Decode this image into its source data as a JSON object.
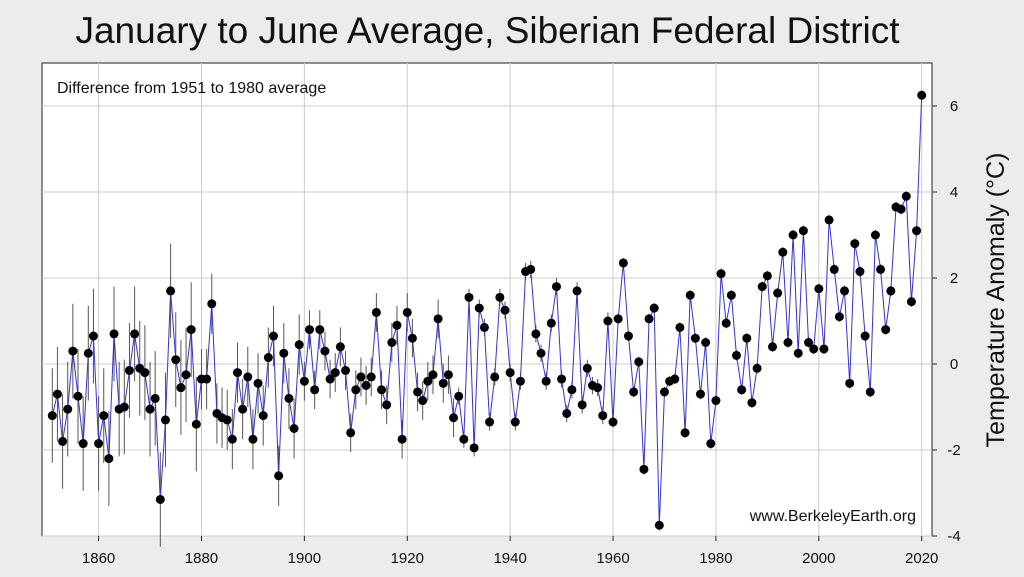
{
  "title": "January to June Average, Siberian Federal District",
  "subtitle": "Difference from 1951 to 1980 average",
  "watermark": "www.BerkeleyEarth.org",
  "colors": {
    "line": "#3333cc",
    "point": "#000000",
    "errorbar": "#555555",
    "grid": "#cccccc",
    "plot_bg": "#ffffff",
    "page_bg": "#ececec"
  },
  "chart_data": {
    "type": "line",
    "title": "January to June Average, Siberian Federal District",
    "subtitle": "Difference from 1951 to 1980 average",
    "xlabel": "",
    "ylabel": "Temperature Anomaly (°C)",
    "xlim": [
      1849,
      2022
    ],
    "ylim": [
      -4,
      7
    ],
    "xticks": [
      1860,
      1880,
      1900,
      1920,
      1940,
      1960,
      1980,
      2000,
      2020
    ],
    "yticks": [
      -4,
      -2,
      0,
      2,
      4,
      6
    ],
    "grid": true,
    "legend": "none",
    "markers": "filled circles with vertical uncertainty bars",
    "series": [
      {
        "x": [
          1851,
          1852,
          1853,
          1854,
          1855,
          1856,
          1857,
          1858,
          1859,
          1860,
          1861,
          1862,
          1863,
          1864,
          1865,
          1866,
          1867,
          1868,
          1869,
          1870,
          1871,
          1872,
          1873,
          1874,
          1875,
          1876,
          1877,
          1878,
          1879,
          1880,
          1881,
          1882,
          1883,
          1884,
          1885,
          1886,
          1887,
          1888,
          1889,
          1890,
          1891,
          1892,
          1893,
          1894,
          1895,
          1896,
          1897,
          1898,
          1899,
          1900,
          1901,
          1902,
          1903,
          1904,
          1905,
          1906,
          1907,
          1908,
          1909,
          1910,
          1911,
          1912,
          1913,
          1914,
          1915,
          1916,
          1917,
          1918,
          1919,
          1920,
          1921,
          1922,
          1923,
          1924,
          1925,
          1926,
          1927,
          1928,
          1929,
          1930,
          1931,
          1932,
          1933,
          1934,
          1935,
          1936,
          1937,
          1938,
          1939,
          1940,
          1941,
          1942,
          1943,
          1944,
          1945,
          1946,
          1947,
          1948,
          1949,
          1950,
          1951,
          1952,
          1953,
          1954,
          1955,
          1956,
          1957,
          1958,
          1959,
          1960,
          1961,
          1962,
          1963,
          1964,
          1965,
          1966,
          1967,
          1968,
          1969,
          1970,
          1971,
          1972,
          1973,
          1974,
          1975,
          1976,
          1977,
          1978,
          1979,
          1980,
          1981,
          1982,
          1983,
          1984,
          1985,
          1986,
          1987,
          1988,
          1989,
          1990,
          1991,
          1992,
          1993,
          1994,
          1995,
          1996,
          1997,
          1998,
          1999,
          2000,
          2001,
          2002,
          2003,
          2004,
          2005,
          2006,
          2007,
          2008,
          2009,
          2010,
          2011,
          2012,
          2013,
          2014,
          2015,
          2016,
          2017,
          2018,
          2019,
          2020
        ],
        "y": [
          -1.2,
          -0.7,
          -1.8,
          -1.05,
          0.3,
          -0.75,
          -1.85,
          0.25,
          0.65,
          -1.85,
          -1.2,
          -2.2,
          0.7,
          -1.05,
          -1.0,
          -0.15,
          0.7,
          -0.1,
          -0.2,
          -1.05,
          -0.8,
          -3.15,
          -1.3,
          1.7,
          0.1,
          -0.55,
          -0.25,
          0.8,
          -1.4,
          -0.35,
          -0.35,
          1.4,
          -1.15,
          -1.25,
          -1.3,
          -1.75,
          -0.2,
          -1.05,
          -0.3,
          -1.75,
          -0.45,
          -1.2,
          0.15,
          0.65,
          -2.6,
          0.25,
          -0.8,
          -1.5,
          0.45,
          -0.4,
          0.8,
          -0.6,
          0.8,
          0.3,
          -0.35,
          -0.2,
          0.4,
          -0.15,
          -1.6,
          -0.6,
          -0.3,
          -0.5,
          -0.3,
          1.2,
          -0.6,
          -0.95,
          0.5,
          0.9,
          -1.75,
          1.2,
          0.6,
          -0.65,
          -0.85,
          -0.4,
          -0.25,
          1.05,
          -0.45,
          -0.25,
          -1.25,
          -0.75,
          -1.75,
          1.55,
          -1.95,
          1.3,
          0.85,
          -1.35,
          -0.3,
          1.55,
          1.25,
          -0.2,
          -1.35,
          -0.4,
          2.15,
          2.2,
          0.7,
          0.25,
          -0.4,
          0.95,
          1.8,
          -0.35,
          -1.15,
          -0.6,
          1.7,
          -0.95,
          -0.1,
          -0.5,
          -0.55,
          -1.2,
          1.0,
          -1.35,
          1.05,
          2.35,
          0.65,
          -0.65,
          0.05,
          -2.45,
          1.05,
          1.3,
          -3.75,
          -0.65,
          -0.4,
          -0.35,
          0.85,
          -1.6,
          1.6,
          0.6,
          -0.7,
          0.5,
          -1.85,
          -0.85,
          2.1,
          0.95,
          1.6,
          0.2,
          -0.6,
          0.6,
          -0.9,
          -0.1,
          1.8,
          2.05,
          0.4,
          1.65,
          2.6,
          0.5,
          3.0,
          0.25,
          3.1,
          0.5,
          0.35,
          1.75,
          0.35,
          3.35,
          2.2,
          1.1,
          1.7,
          -0.45,
          2.8,
          2.15,
          0.65,
          -0.65,
          3.0,
          2.2,
          0.8,
          1.7,
          3.65,
          3.6,
          3.9,
          1.45,
          3.1,
          6.25
        ]
      }
    ]
  }
}
